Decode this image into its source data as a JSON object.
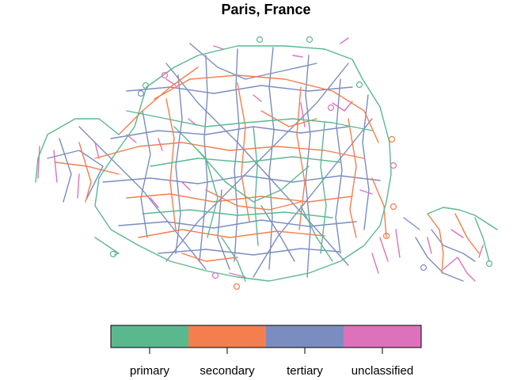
{
  "title": "Paris, France",
  "legend": {
    "items": [
      {
        "label": "primary",
        "color": "#5ab88f"
      },
      {
        "label": "secondary",
        "color": "#f47e4e"
      },
      {
        "label": "tertiary",
        "color": "#7b8dc0"
      },
      {
        "label": "unclassified",
        "color": "#dd72ba"
      }
    ]
  }
}
